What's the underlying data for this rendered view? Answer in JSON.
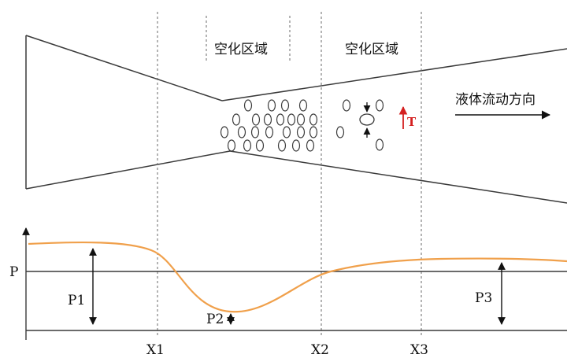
{
  "labels": {
    "cavitation_zone_1": "空化区域",
    "cavitation_zone_2": "空化区域",
    "flow_direction": "液体流动方向",
    "t_marker": "T",
    "p_axis": "P",
    "p1": "P1",
    "p2": "P2",
    "p3": "P3",
    "x1": "X1",
    "x2": "X2",
    "x3": "X3"
  },
  "colors": {
    "line": "#3a3a3a",
    "curve": "#f0a04b",
    "accent": "#d42020",
    "dashed": "#6a6a6a"
  }
}
